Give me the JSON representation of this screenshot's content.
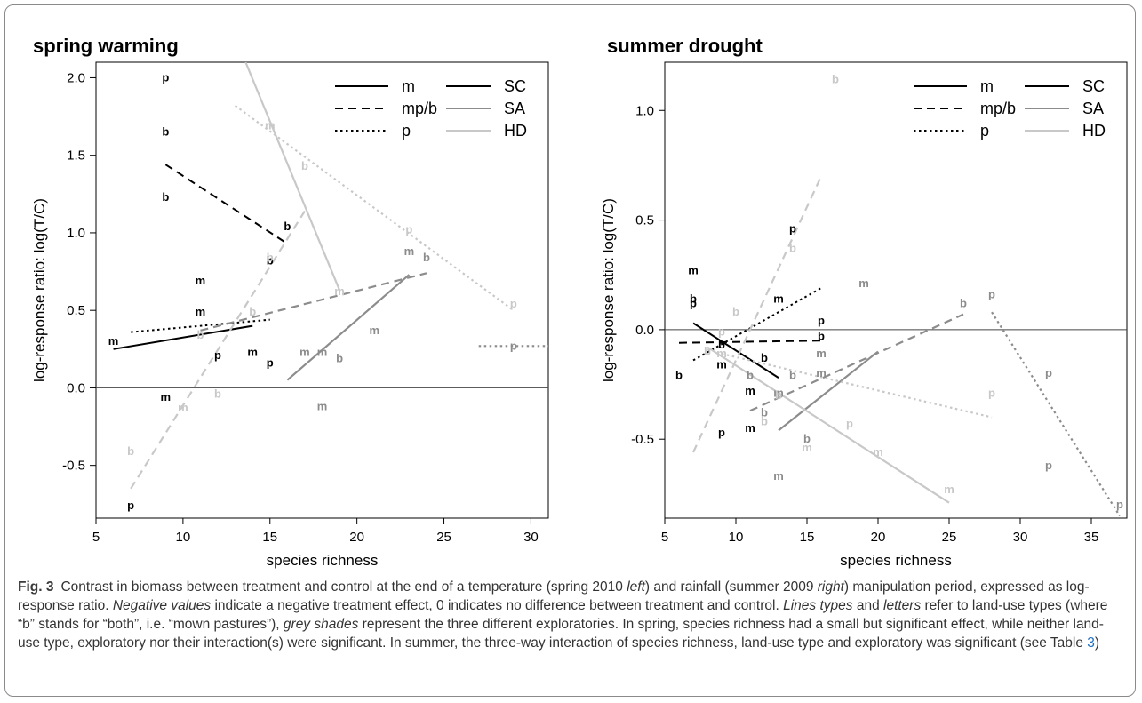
{
  "figure": {
    "caption_label": "Fig. 3",
    "caption_parts": [
      {
        "t": "Contrast in biomass between treatment and control at the end of a temperature (spring 2010 ",
        "s": "n"
      },
      {
        "t": "left",
        "s": "i"
      },
      {
        "t": ") and rainfall (summer 2009 ",
        "s": "n"
      },
      {
        "t": "right",
        "s": "i"
      },
      {
        "t": ") manipulation period, expressed as log-response ratio. ",
        "s": "n"
      },
      {
        "t": "Negative values",
        "s": "i"
      },
      {
        "t": " indicate a negative treatment effect, 0 indicates no difference between treatment and control. ",
        "s": "n"
      },
      {
        "t": "Lines types",
        "s": "i"
      },
      {
        "t": " and ",
        "s": "n"
      },
      {
        "t": "letters",
        "s": "i"
      },
      {
        "t": " refer to land-use types (where “b” stands for “both”, i.e. “mown pastures”), ",
        "s": "n"
      },
      {
        "t": "grey shades",
        "s": "i"
      },
      {
        "t": " represent the three different exploratories. In spring, species richness had a small but significant effect, while neither land-use type, exploratory nor their interaction(s) were significant. In summer, the three-way interaction of species richness, land-use type and exploratory was significant (see Table ",
        "s": "n"
      },
      {
        "t": "3",
        "s": "r"
      },
      {
        "t": ")",
        "s": "n"
      }
    ]
  },
  "colors": {
    "SC": "#000000",
    "SA": "#8c8c8c",
    "HD": "#c8c8c8"
  },
  "chart_data": [
    {
      "type": "scatter",
      "title": "spring warming",
      "xlabel": "species richness",
      "ylabel": "log-response ratio: log(T/C)",
      "xlim": [
        5,
        31
      ],
      "ylim": [
        -0.84,
        2.1
      ],
      "xticks": [
        5,
        10,
        15,
        20,
        25,
        30
      ],
      "yticks": [
        -0.5,
        0.0,
        0.5,
        1.0,
        1.5,
        2.0
      ],
      "ytick_labels": [
        "-0.5",
        "0.0",
        "0.5",
        "1.0",
        "1.5",
        "2.0"
      ],
      "hline": 0,
      "legend": {
        "linetypes": [
          {
            "label": "m",
            "dash": "solid"
          },
          {
            "label": "mp/b",
            "dash": "dashed"
          },
          {
            "label": "p",
            "dash": "dotted"
          }
        ],
        "exploratories": [
          {
            "label": "SC",
            "group": "SC"
          },
          {
            "label": "SA",
            "group": "SA"
          },
          {
            "label": "HD",
            "group": "HD"
          }
        ],
        "placement": "top-right"
      },
      "lines": [
        {
          "group": "SC",
          "landuse": "m",
          "x": [
            6,
            14
          ],
          "y": [
            0.25,
            0.4
          ]
        },
        {
          "group": "SC",
          "landuse": "mp/b",
          "x": [
            9,
            16
          ],
          "y": [
            1.44,
            0.93
          ]
        },
        {
          "group": "SC",
          "landuse": "p",
          "x": [
            7,
            15
          ],
          "y": [
            0.36,
            0.44
          ]
        },
        {
          "group": "SA",
          "landuse": "m",
          "x": [
            16,
            23
          ],
          "y": [
            0.05,
            0.73
          ]
        },
        {
          "group": "SA",
          "landuse": "mp/b",
          "x": [
            11,
            24
          ],
          "y": [
            0.37,
            0.74
          ]
        },
        {
          "group": "SA",
          "landuse": "p",
          "x": [
            27,
            31
          ],
          "y": [
            0.27,
            0.27
          ]
        },
        {
          "group": "HD",
          "landuse": "m",
          "x": [
            13.6,
            19
          ],
          "y": [
            2.1,
            0.63
          ]
        },
        {
          "group": "HD",
          "landuse": "mp/b",
          "x": [
            7,
            17
          ],
          "y": [
            -0.65,
            1.14
          ]
        },
        {
          "group": "HD",
          "landuse": "p",
          "x": [
            13,
            29
          ],
          "y": [
            1.82,
            0.5
          ]
        }
      ],
      "points": [
        {
          "x": 9,
          "y": 2.0,
          "l": "p",
          "g": "SC"
        },
        {
          "x": 9,
          "y": 1.65,
          "l": "b",
          "g": "SC"
        },
        {
          "x": 9,
          "y": 1.23,
          "l": "b",
          "g": "SC"
        },
        {
          "x": 16,
          "y": 1.04,
          "l": "b",
          "g": "SC"
        },
        {
          "x": 15,
          "y": 0.82,
          "l": "b",
          "g": "SC"
        },
        {
          "x": 11,
          "y": 0.69,
          "l": "m",
          "g": "SC"
        },
        {
          "x": 11,
          "y": 0.49,
          "l": "m",
          "g": "SC"
        },
        {
          "x": 6,
          "y": 0.3,
          "l": "m",
          "g": "SC"
        },
        {
          "x": 12,
          "y": 0.21,
          "l": "p",
          "g": "SC"
        },
        {
          "x": 14,
          "y": 0.23,
          "l": "m",
          "g": "SC"
        },
        {
          "x": 15,
          "y": 0.16,
          "l": "p",
          "g": "SC"
        },
        {
          "x": 9,
          "y": -0.06,
          "l": "m",
          "g": "SC"
        },
        {
          "x": 7,
          "y": -0.76,
          "l": "p",
          "g": "SC"
        },
        {
          "x": 23,
          "y": 0.88,
          "l": "m",
          "g": "SA"
        },
        {
          "x": 24,
          "y": 0.84,
          "l": "b",
          "g": "SA"
        },
        {
          "x": 21,
          "y": 0.37,
          "l": "m",
          "g": "SA"
        },
        {
          "x": 17,
          "y": 0.23,
          "l": "m",
          "g": "SA"
        },
        {
          "x": 18,
          "y": 0.23,
          "l": "m",
          "g": "SA"
        },
        {
          "x": 19,
          "y": 0.19,
          "l": "b",
          "g": "SA"
        },
        {
          "x": 18,
          "y": -0.12,
          "l": "m",
          "g": "SA"
        },
        {
          "x": 29,
          "y": 0.27,
          "l": "p",
          "g": "SA"
        },
        {
          "x": 15,
          "y": 1.69,
          "l": "m",
          "g": "HD"
        },
        {
          "x": 17,
          "y": 1.43,
          "l": "b",
          "g": "HD"
        },
        {
          "x": 23,
          "y": 1.02,
          "l": "p",
          "g": "HD"
        },
        {
          "x": 15,
          "y": 0.84,
          "l": "b",
          "g": "HD"
        },
        {
          "x": 19,
          "y": 0.62,
          "l": "m",
          "g": "HD"
        },
        {
          "x": 29,
          "y": 0.54,
          "l": "p",
          "g": "HD"
        },
        {
          "x": 14,
          "y": 0.49,
          "l": "b",
          "g": "HD"
        },
        {
          "x": 11,
          "y": 0.34,
          "l": "b",
          "g": "HD"
        },
        {
          "x": 12,
          "y": -0.04,
          "l": "b",
          "g": "HD"
        },
        {
          "x": 10,
          "y": -0.13,
          "l": "m",
          "g": "HD"
        },
        {
          "x": 7,
          "y": -0.41,
          "l": "b",
          "g": "HD"
        }
      ]
    },
    {
      "type": "scatter",
      "title": "summer drought",
      "xlabel": "species richness",
      "ylabel": "log-response ratio: log(T/C)",
      "xlim": [
        5,
        37.5
      ],
      "ylim": [
        -0.86,
        1.22
      ],
      "xticks": [
        5,
        10,
        15,
        20,
        25,
        30,
        35
      ],
      "yticks": [
        -0.5,
        0.0,
        0.5,
        1.0
      ],
      "ytick_labels": [
        "-0.5",
        "0.0",
        "0.5",
        "1.0"
      ],
      "hline": 0,
      "legend": {
        "linetypes": [
          {
            "label": "m",
            "dash": "solid"
          },
          {
            "label": "mp/b",
            "dash": "dashed"
          },
          {
            "label": "p",
            "dash": "dotted"
          }
        ],
        "exploratories": [
          {
            "label": "SC",
            "group": "SC"
          },
          {
            "label": "SA",
            "group": "SA"
          },
          {
            "label": "HD",
            "group": "HD"
          }
        ],
        "placement": "top-right"
      },
      "lines": [
        {
          "group": "SC",
          "landuse": "m",
          "x": [
            7,
            13
          ],
          "y": [
            0.03,
            -0.22
          ]
        },
        {
          "group": "SC",
          "landuse": "mp/b",
          "x": [
            6,
            16
          ],
          "y": [
            -0.06,
            -0.05
          ]
        },
        {
          "group": "SC",
          "landuse": "p",
          "x": [
            7,
            16
          ],
          "y": [
            -0.14,
            0.19
          ]
        },
        {
          "group": "SA",
          "landuse": "m",
          "x": [
            13,
            20
          ],
          "y": [
            -0.46,
            -0.1
          ]
        },
        {
          "group": "SA",
          "landuse": "mp/b",
          "x": [
            11,
            26
          ],
          "y": [
            -0.37,
            0.07
          ]
        },
        {
          "group": "SA",
          "landuse": "p",
          "x": [
            28,
            37
          ],
          "y": [
            0.08,
            -0.85
          ]
        },
        {
          "group": "HD",
          "landuse": "m",
          "x": [
            8,
            25
          ],
          "y": [
            -0.08,
            -0.79
          ]
        },
        {
          "group": "HD",
          "landuse": "mp/b",
          "x": [
            7,
            16
          ],
          "y": [
            -0.56,
            0.7
          ]
        },
        {
          "group": "HD",
          "landuse": "p",
          "x": [
            9,
            28
          ],
          "y": [
            -0.11,
            -0.4
          ]
        }
      ],
      "points": [
        {
          "x": 7,
          "y": 0.27,
          "l": "m",
          "g": "SC"
        },
        {
          "x": 7,
          "y": 0.14,
          "l": "b",
          "g": "SC"
        },
        {
          "x": 7,
          "y": 0.12,
          "l": "p",
          "g": "SC"
        },
        {
          "x": 14,
          "y": 0.46,
          "l": "p",
          "g": "SC"
        },
        {
          "x": 13,
          "y": 0.14,
          "l": "m",
          "g": "SC"
        },
        {
          "x": 16,
          "y": 0.04,
          "l": "p",
          "g": "SC"
        },
        {
          "x": 16,
          "y": -0.03,
          "l": "b",
          "g": "SC"
        },
        {
          "x": 9,
          "y": -0.07,
          "l": "b",
          "g": "SC"
        },
        {
          "x": 12,
          "y": -0.13,
          "l": "b",
          "g": "SC"
        },
        {
          "x": 9,
          "y": -0.16,
          "l": "m",
          "g": "SC"
        },
        {
          "x": 6,
          "y": -0.21,
          "l": "b",
          "g": "SC"
        },
        {
          "x": 11,
          "y": -0.28,
          "l": "m",
          "g": "SC"
        },
        {
          "x": 11,
          "y": -0.45,
          "l": "m",
          "g": "SC"
        },
        {
          "x": 9,
          "y": -0.47,
          "l": "p",
          "g": "SC"
        },
        {
          "x": 19,
          "y": 0.21,
          "l": "m",
          "g": "SA"
        },
        {
          "x": 26,
          "y": 0.12,
          "l": "b",
          "g": "SA"
        },
        {
          "x": 28,
          "y": 0.16,
          "l": "p",
          "g": "SA"
        },
        {
          "x": 16,
          "y": -0.11,
          "l": "m",
          "g": "SA"
        },
        {
          "x": 16,
          "y": -0.2,
          "l": "m",
          "g": "SA"
        },
        {
          "x": 14,
          "y": -0.21,
          "l": "b",
          "g": "SA"
        },
        {
          "x": 11,
          "y": -0.21,
          "l": "b",
          "g": "SA"
        },
        {
          "x": 13,
          "y": -0.29,
          "l": "m",
          "g": "SA"
        },
        {
          "x": 12,
          "y": -0.38,
          "l": "b",
          "g": "SA"
        },
        {
          "x": 15,
          "y": -0.5,
          "l": "b",
          "g": "SA"
        },
        {
          "x": 32,
          "y": -0.2,
          "l": "p",
          "g": "SA"
        },
        {
          "x": 32,
          "y": -0.62,
          "l": "p",
          "g": "SA"
        },
        {
          "x": 13,
          "y": -0.67,
          "l": "m",
          "g": "SA"
        },
        {
          "x": 37,
          "y": -0.8,
          "l": "p",
          "g": "SA"
        },
        {
          "x": 17,
          "y": 1.14,
          "l": "b",
          "g": "HD"
        },
        {
          "x": 14,
          "y": 0.37,
          "l": "b",
          "g": "HD"
        },
        {
          "x": 10,
          "y": 0.08,
          "l": "b",
          "g": "HD"
        },
        {
          "x": 9,
          "y": -0.01,
          "l": "p",
          "g": "HD"
        },
        {
          "x": 8,
          "y": -0.1,
          "l": "b",
          "g": "HD"
        },
        {
          "x": 9,
          "y": -0.11,
          "l": "m",
          "g": "HD"
        },
        {
          "x": 13,
          "y": -0.3,
          "l": "b",
          "g": "HD"
        },
        {
          "x": 28,
          "y": -0.29,
          "l": "p",
          "g": "HD"
        },
        {
          "x": 12,
          "y": -0.42,
          "l": "b",
          "g": "HD"
        },
        {
          "x": 18,
          "y": -0.43,
          "l": "p",
          "g": "HD"
        },
        {
          "x": 15,
          "y": -0.54,
          "l": "m",
          "g": "HD"
        },
        {
          "x": 20,
          "y": -0.56,
          "l": "m",
          "g": "HD"
        },
        {
          "x": 25,
          "y": -0.73,
          "l": "m",
          "g": "HD"
        }
      ]
    }
  ]
}
